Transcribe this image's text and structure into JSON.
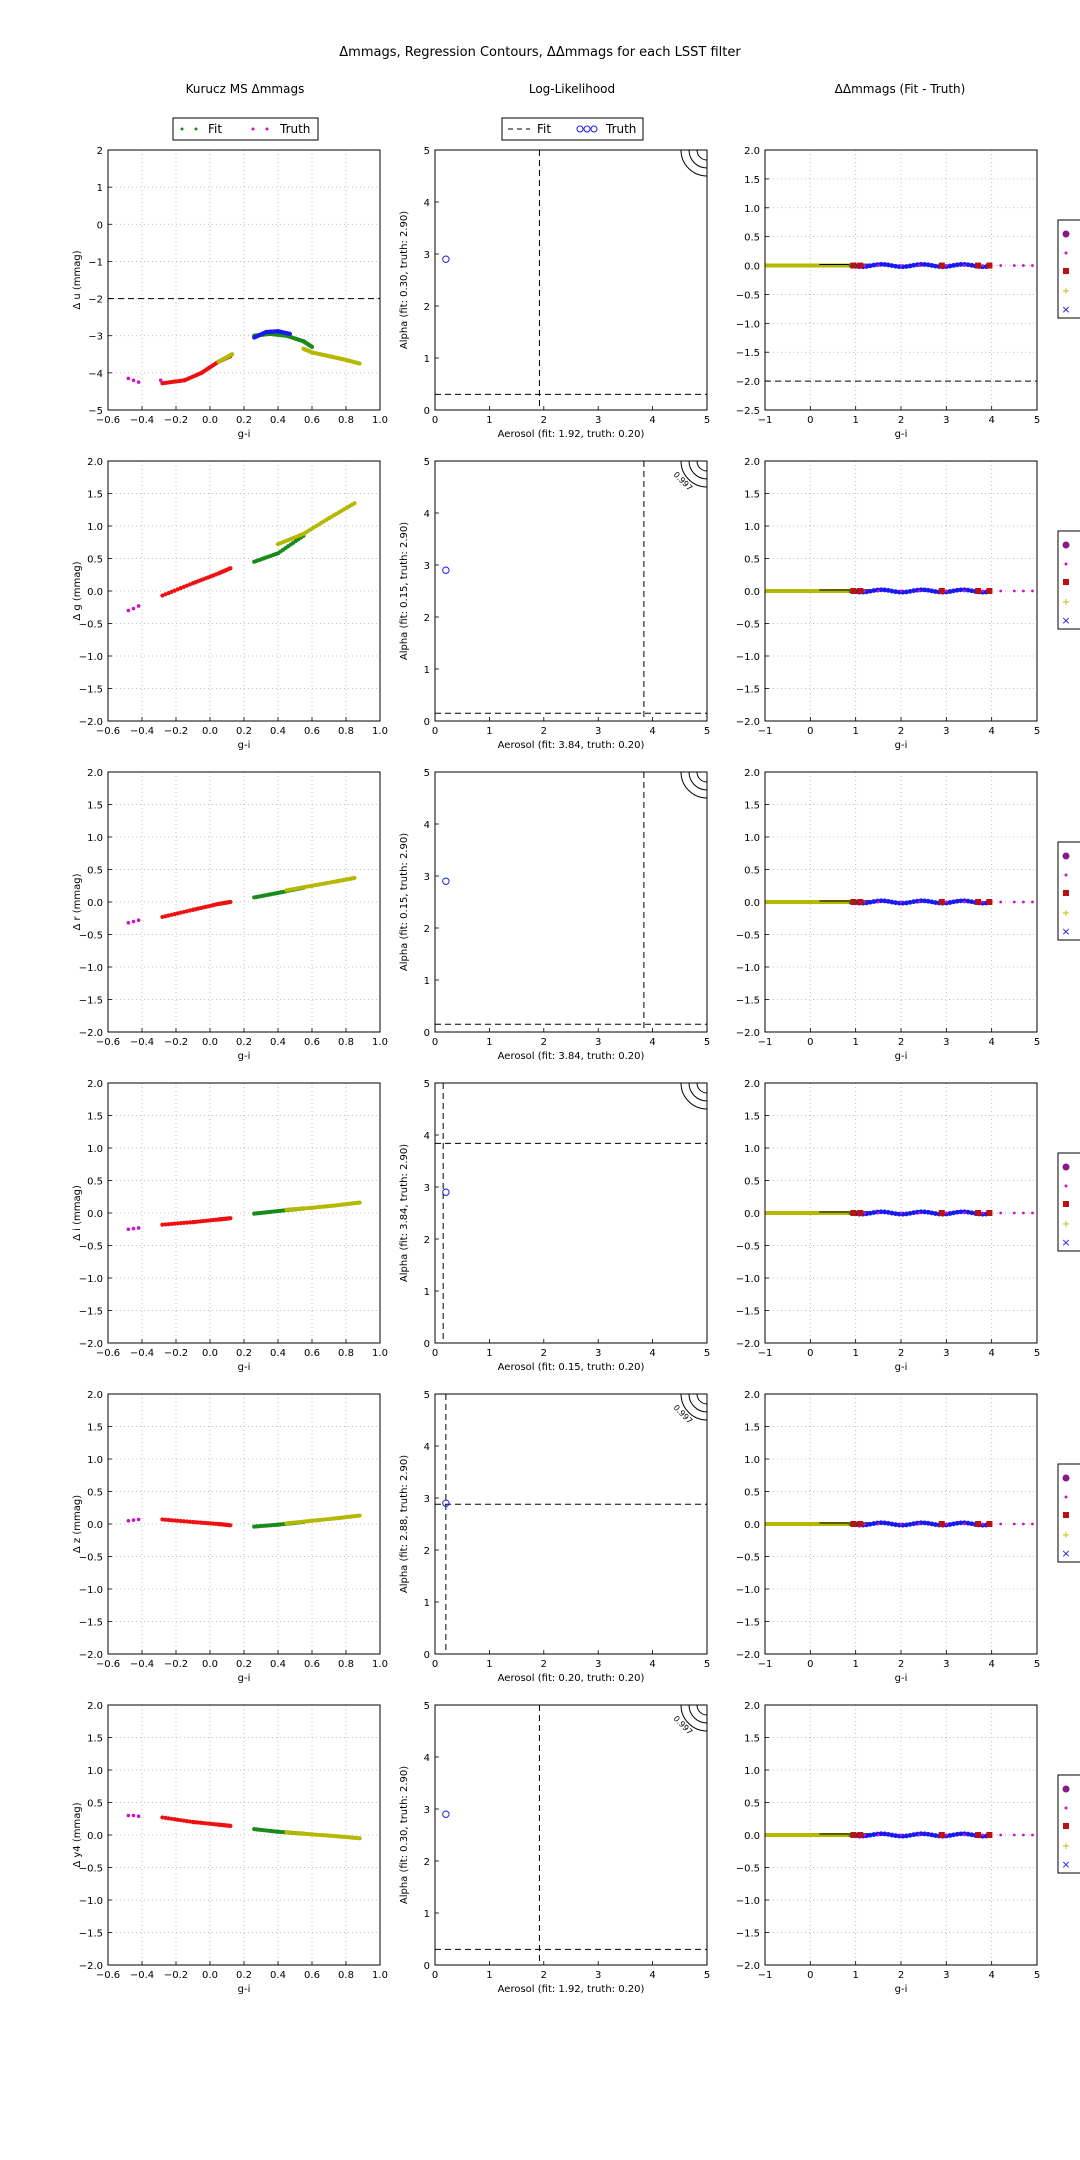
{
  "figure": {
    "title": "Δmmags, Regression Contours, ΔΔmmags for each LSST filter",
    "column_titles": [
      "Kurucz MS Δmmags",
      "Log-Likelihood",
      "ΔΔmmags (Fit - Truth)"
    ]
  },
  "legends": {
    "col1": [
      "Fit",
      "Truth"
    ],
    "col2": [
      "Fit",
      "Truth"
    ]
  },
  "colors": {
    "red": "#ee1111",
    "green": "#1a8a1a",
    "yellow": "#b5b800",
    "blue": "#1a1aee",
    "magenta": "#cc11cc",
    "purple": "#881a88",
    "maroon": "#bb1111",
    "black": "#000000"
  },
  "chart_data": [
    {
      "type": "scatter",
      "column": "dmmags",
      "filter": "u",
      "xlabel": "g-i",
      "ylabel": "Δ u (mmag)",
      "xlim": [
        -0.6,
        1.0
      ],
      "ylim": [
        -5,
        2
      ],
      "xticks": [
        "−0.6",
        "−0.4",
        "−0.2",
        "0.0",
        "0.2",
        "0.4",
        "0.6",
        "0.8",
        "1.0"
      ],
      "yticks": [
        "−5",
        "−4",
        "−3",
        "−2",
        "−1",
        "0",
        "1",
        "2"
      ],
      "grid": true,
      "hline": -2,
      "truth_x": [
        -0.48,
        -0.45,
        -0.42,
        -0.29
      ],
      "truth_y": [
        -4.15,
        -4.2,
        -4.25,
        -4.2
      ],
      "fit_segments": [
        {
          "color": "red",
          "points": [
            [
              -0.28,
              -4.28
            ],
            [
              -0.15,
              -4.2
            ],
            [
              -0.05,
              -4.0
            ],
            [
              0.05,
              -3.7
            ],
            [
              0.12,
              -3.55
            ]
          ]
        },
        {
          "color": "yellow",
          "points": [
            [
              0.05,
              -3.7
            ],
            [
              0.13,
              -3.5
            ]
          ]
        },
        {
          "color": "green",
          "points": [
            [
              0.26,
              -3.0
            ],
            [
              0.35,
              -2.95
            ],
            [
              0.45,
              -3.0
            ],
            [
              0.55,
              -3.15
            ],
            [
              0.6,
              -3.3
            ]
          ]
        },
        {
          "color": "blue",
          "points": [
            [
              0.26,
              -3.05
            ],
            [
              0.33,
              -2.9
            ],
            [
              0.4,
              -2.88
            ],
            [
              0.47,
              -2.95
            ]
          ]
        },
        {
          "color": "yellow",
          "points": [
            [
              0.55,
              -3.35
            ],
            [
              0.6,
              -3.45
            ],
            [
              0.7,
              -3.55
            ],
            [
              0.8,
              -3.65
            ],
            [
              0.88,
              -3.75
            ]
          ]
        }
      ]
    },
    {
      "type": "contour",
      "column": "loglike",
      "filter": "u",
      "xlabel": "Aerosol (fit: 1.92, truth: 0.20)",
      "ylabel": "Alpha (fit: 0.30, truth: 2.90)",
      "xlim": [
        0,
        5
      ],
      "ylim": [
        0,
        5
      ],
      "xticks": [
        "0",
        "1",
        "2",
        "3",
        "4",
        "5"
      ],
      "yticks": [
        "0",
        "1",
        "2",
        "3",
        "4",
        "5"
      ],
      "fit": [
        1.92,
        0.3
      ],
      "truth": [
        0.2,
        2.9
      ],
      "contour_label": ""
    },
    {
      "type": "scatter",
      "column": "ddmmags",
      "filter": "u",
      "xlabel": "g-i",
      "xlim": [
        -1,
        5
      ],
      "ylim": [
        -2.5,
        2.0
      ],
      "xticks": [
        "−1",
        "0",
        "1",
        "2",
        "3",
        "4",
        "5"
      ],
      "yticks": [
        "−2.5",
        "−2.0",
        "−1.5",
        "−1.0",
        "−0.5",
        "0.0",
        "0.5",
        "1.0",
        "1.5",
        "2.0"
      ],
      "grid": true,
      "hline": -2,
      "band_y": 0.0
    },
    {
      "type": "scatter",
      "column": "dmmags",
      "filter": "g",
      "xlabel": "g-i",
      "ylabel": "Δ g (mmag)",
      "xlim": [
        -0.6,
        1.0
      ],
      "ylim": [
        -2,
        2
      ],
      "xticks": [
        "−0.6",
        "−0.4",
        "−0.2",
        "0.0",
        "0.2",
        "0.4",
        "0.6",
        "0.8",
        "1.0"
      ],
      "yticks": [
        "−2.0",
        "−1.5",
        "−1.0",
        "−0.5",
        "0.0",
        "0.5",
        "1.0",
        "1.5",
        "2.0"
      ],
      "grid": true,
      "truth_x": [
        -0.48,
        -0.45,
        -0.42
      ],
      "truth_y": [
        -0.3,
        -0.27,
        -0.23
      ],
      "fit_segments": [
        {
          "color": "red",
          "points": [
            [
              -0.28,
              -0.07
            ],
            [
              -0.1,
              0.12
            ],
            [
              0.05,
              0.27
            ],
            [
              0.12,
              0.35
            ]
          ]
        },
        {
          "color": "green",
          "points": [
            [
              0.26,
              0.45
            ],
            [
              0.4,
              0.58
            ],
            [
              0.55,
              0.85
            ]
          ]
        },
        {
          "color": "yellow",
          "points": [
            [
              0.4,
              0.72
            ],
            [
              0.55,
              0.88
            ],
            [
              0.7,
              1.12
            ],
            [
              0.85,
              1.35
            ]
          ]
        }
      ]
    },
    {
      "type": "contour",
      "column": "loglike",
      "filter": "g",
      "xlabel": "Aerosol (fit: 3.84, truth: 0.20)",
      "ylabel": "Alpha (fit: 0.15, truth: 2.90)",
      "xlim": [
        0,
        5
      ],
      "ylim": [
        0,
        5
      ],
      "xticks": [
        "0",
        "1",
        "2",
        "3",
        "4",
        "5"
      ],
      "yticks": [
        "0",
        "1",
        "2",
        "3",
        "4",
        "5"
      ],
      "fit": [
        3.84,
        0.15
      ],
      "truth": [
        0.2,
        2.9
      ],
      "contour_label": "0.997"
    },
    {
      "type": "scatter",
      "column": "ddmmags",
      "filter": "g",
      "xlabel": "g-i",
      "xlim": [
        -1,
        5
      ],
      "ylim": [
        -2,
        2
      ],
      "xticks": [
        "−1",
        "0",
        "1",
        "2",
        "3",
        "4",
        "5"
      ],
      "yticks": [
        "−2.0",
        "−1.5",
        "−1.0",
        "−0.5",
        "0.0",
        "0.5",
        "1.0",
        "1.5",
        "2.0"
      ],
      "grid": true,
      "band_y": 0.0
    },
    {
      "type": "scatter",
      "column": "dmmags",
      "filter": "r",
      "xlabel": "g-i",
      "ylabel": "Δ r (mmag)",
      "xlim": [
        -0.6,
        1.0
      ],
      "ylim": [
        -2,
        2
      ],
      "xticks": [
        "−0.6",
        "−0.4",
        "−0.2",
        "0.0",
        "0.2",
        "0.4",
        "0.6",
        "0.8",
        "1.0"
      ],
      "yticks": [
        "−2.0",
        "−1.5",
        "−1.0",
        "−0.5",
        "0.0",
        "0.5",
        "1.0",
        "1.5",
        "2.0"
      ],
      "grid": true,
      "truth_x": [
        -0.48,
        -0.45,
        -0.42
      ],
      "truth_y": [
        -0.32,
        -0.3,
        -0.28
      ],
      "fit_segments": [
        {
          "color": "red",
          "points": [
            [
              -0.28,
              -0.23
            ],
            [
              -0.1,
              -0.12
            ],
            [
              0.05,
              -0.03
            ],
            [
              0.12,
              0.0
            ]
          ]
        },
        {
          "color": "green",
          "points": [
            [
              0.26,
              0.07
            ],
            [
              0.4,
              0.14
            ],
            [
              0.55,
              0.22
            ]
          ]
        },
        {
          "color": "yellow",
          "points": [
            [
              0.45,
              0.18
            ],
            [
              0.6,
              0.25
            ],
            [
              0.75,
              0.32
            ],
            [
              0.85,
              0.37
            ]
          ]
        }
      ]
    },
    {
      "type": "contour",
      "column": "loglike",
      "filter": "r",
      "xlabel": "Aerosol (fit: 3.84, truth: 0.20)",
      "ylabel": "Alpha (fit: 0.15, truth: 2.90)",
      "xlim": [
        0,
        5
      ],
      "ylim": [
        0,
        5
      ],
      "xticks": [
        "0",
        "1",
        "2",
        "3",
        "4",
        "5"
      ],
      "yticks": [
        "0",
        "1",
        "2",
        "3",
        "4",
        "5"
      ],
      "fit": [
        3.84,
        0.15
      ],
      "truth": [
        0.2,
        2.9
      ],
      "contour_label": ""
    },
    {
      "type": "scatter",
      "column": "ddmmags",
      "filter": "r",
      "xlabel": "g-i",
      "xlim": [
        -1,
        5
      ],
      "ylim": [
        -2,
        2
      ],
      "xticks": [
        "−1",
        "0",
        "1",
        "2",
        "3",
        "4",
        "5"
      ],
      "yticks": [
        "−2.0",
        "−1.5",
        "−1.0",
        "−0.5",
        "0.0",
        "0.5",
        "1.0",
        "1.5",
        "2.0"
      ],
      "grid": true,
      "band_y": 0.0
    },
    {
      "type": "scatter",
      "column": "dmmags",
      "filter": "i",
      "xlabel": "g-i",
      "ylabel": "Δ i (mmag)",
      "xlim": [
        -0.6,
        1.0
      ],
      "ylim": [
        -2,
        2
      ],
      "xticks": [
        "−0.6",
        "−0.4",
        "−0.2",
        "0.0",
        "0.2",
        "0.4",
        "0.6",
        "0.8",
        "1.0"
      ],
      "yticks": [
        "−2.0",
        "−1.5",
        "−1.0",
        "−0.5",
        "0.0",
        "0.5",
        "1.0",
        "1.5",
        "2.0"
      ],
      "grid": true,
      "truth_x": [
        -0.48,
        -0.45,
        -0.42
      ],
      "truth_y": [
        -0.25,
        -0.24,
        -0.23
      ],
      "fit_segments": [
        {
          "color": "red",
          "points": [
            [
              -0.28,
              -0.18
            ],
            [
              -0.1,
              -0.14
            ],
            [
              0.05,
              -0.1
            ],
            [
              0.12,
              -0.08
            ]
          ]
        },
        {
          "color": "green",
          "points": [
            [
              0.26,
              -0.01
            ],
            [
              0.4,
              0.03
            ],
            [
              0.55,
              0.07
            ]
          ]
        },
        {
          "color": "yellow",
          "points": [
            [
              0.45,
              0.05
            ],
            [
              0.6,
              0.08
            ],
            [
              0.75,
              0.12
            ],
            [
              0.88,
              0.16
            ]
          ]
        }
      ]
    },
    {
      "type": "contour",
      "column": "loglike",
      "filter": "i",
      "xlabel": "Aerosol (fit: 0.15, truth: 0.20)",
      "ylabel": "Alpha (fit: 3.84, truth: 2.90)",
      "xlim": [
        0,
        5
      ],
      "ylim": [
        0,
        5
      ],
      "xticks": [
        "0",
        "1",
        "2",
        "3",
        "4",
        "5"
      ],
      "yticks": [
        "0",
        "1",
        "2",
        "3",
        "4",
        "5"
      ],
      "fit": [
        0.15,
        3.84
      ],
      "truth": [
        0.2,
        2.9
      ],
      "contour_label": ""
    },
    {
      "type": "scatter",
      "column": "ddmmags",
      "filter": "i",
      "xlabel": "g-i",
      "xlim": [
        -1,
        5
      ],
      "ylim": [
        -2,
        2
      ],
      "xticks": [
        "−1",
        "0",
        "1",
        "2",
        "3",
        "4",
        "5"
      ],
      "yticks": [
        "−2.0",
        "−1.5",
        "−1.0",
        "−0.5",
        "0.0",
        "0.5",
        "1.0",
        "1.5",
        "2.0"
      ],
      "grid": true,
      "band_y": 0.0
    },
    {
      "type": "scatter",
      "column": "dmmags",
      "filter": "z",
      "xlabel": "g-i",
      "ylabel": "Δ z (mmag)",
      "xlim": [
        -0.6,
        1.0
      ],
      "ylim": [
        -2,
        2
      ],
      "xticks": [
        "−0.6",
        "−0.4",
        "−0.2",
        "0.0",
        "0.2",
        "0.4",
        "0.6",
        "0.8",
        "1.0"
      ],
      "yticks": [
        "−2.0",
        "−1.5",
        "−1.0",
        "−0.5",
        "0.0",
        "0.5",
        "1.0",
        "1.5",
        "2.0"
      ],
      "grid": true,
      "truth_x": [
        -0.48,
        -0.45,
        -0.42
      ],
      "truth_y": [
        0.05,
        0.06,
        0.07
      ],
      "fit_segments": [
        {
          "color": "red",
          "points": [
            [
              -0.28,
              0.07
            ],
            [
              -0.1,
              0.03
            ],
            [
              0.05,
              0.0
            ],
            [
              0.12,
              -0.02
            ]
          ]
        },
        {
          "color": "green",
          "points": [
            [
              0.26,
              -0.04
            ],
            [
              0.4,
              -0.01
            ],
            [
              0.55,
              0.03
            ]
          ]
        },
        {
          "color": "yellow",
          "points": [
            [
              0.45,
              0.01
            ],
            [
              0.6,
              0.05
            ],
            [
              0.75,
              0.09
            ],
            [
              0.88,
              0.13
            ]
          ]
        }
      ]
    },
    {
      "type": "contour",
      "column": "loglike",
      "filter": "z",
      "xlabel": "Aerosol (fit: 0.20, truth: 0.20)",
      "ylabel": "Alpha (fit: 2.88, truth: 2.90)",
      "xlim": [
        0,
        5
      ],
      "ylim": [
        0,
        5
      ],
      "xticks": [
        "0",
        "1",
        "2",
        "3",
        "4",
        "5"
      ],
      "yticks": [
        "0",
        "1",
        "2",
        "3",
        "4",
        "5"
      ],
      "fit": [
        0.2,
        2.88
      ],
      "truth": [
        0.2,
        2.9
      ],
      "contour_label": "0.997"
    },
    {
      "type": "scatter",
      "column": "ddmmags",
      "filter": "z",
      "xlabel": "g-i",
      "xlim": [
        -1,
        5
      ],
      "ylim": [
        -2,
        2
      ],
      "xticks": [
        "−1",
        "0",
        "1",
        "2",
        "3",
        "4",
        "5"
      ],
      "yticks": [
        "−2.0",
        "−1.5",
        "−1.0",
        "−0.5",
        "0.0",
        "0.5",
        "1.0",
        "1.5",
        "2.0"
      ],
      "grid": true,
      "band_y": 0.0
    },
    {
      "type": "scatter",
      "column": "dmmags",
      "filter": "y4",
      "xlabel": "g-i",
      "ylabel": "Δ y4 (mmag)",
      "xlim": [
        -0.6,
        1.0
      ],
      "ylim": [
        -2,
        2
      ],
      "xticks": [
        "−0.6",
        "−0.4",
        "−0.2",
        "0.0",
        "0.2",
        "0.4",
        "0.6",
        "0.8",
        "1.0"
      ],
      "yticks": [
        "−2.0",
        "−1.5",
        "−1.0",
        "−0.5",
        "0.0",
        "0.5",
        "1.0",
        "1.5",
        "2.0"
      ],
      "grid": true,
      "truth_x": [
        -0.48,
        -0.45,
        -0.42
      ],
      "truth_y": [
        0.3,
        0.3,
        0.29
      ],
      "fit_segments": [
        {
          "color": "red",
          "points": [
            [
              -0.28,
              0.27
            ],
            [
              -0.1,
              0.2
            ],
            [
              0.05,
              0.16
            ],
            [
              0.12,
              0.14
            ]
          ]
        },
        {
          "color": "green",
          "points": [
            [
              0.26,
              0.09
            ],
            [
              0.4,
              0.05
            ],
            [
              0.55,
              0.02
            ]
          ]
        },
        {
          "color": "yellow",
          "points": [
            [
              0.45,
              0.04
            ],
            [
              0.6,
              0.01
            ],
            [
              0.75,
              -0.02
            ],
            [
              0.88,
              -0.05
            ]
          ]
        }
      ]
    },
    {
      "type": "contour",
      "column": "loglike",
      "filter": "y4",
      "xlabel": "Aerosol (fit: 1.92, truth: 0.20)",
      "ylabel": "Alpha (fit: 0.30, truth: 2.90)",
      "xlim": [
        0,
        5
      ],
      "ylim": [
        0,
        5
      ],
      "xticks": [
        "0",
        "1",
        "2",
        "3",
        "4",
        "5"
      ],
      "yticks": [
        "0",
        "1",
        "2",
        "3",
        "4",
        "5"
      ],
      "fit": [
        1.92,
        0.3
      ],
      "truth": [
        0.2,
        2.9
      ],
      "contour_label": "0.997"
    },
    {
      "type": "scatter",
      "column": "ddmmags",
      "filter": "y4",
      "xlabel": "g-i",
      "xlim": [
        -1,
        5
      ],
      "ylim": [
        -2,
        2
      ],
      "xticks": [
        "−1",
        "0",
        "1",
        "2",
        "3",
        "4",
        "5"
      ],
      "yticks": [
        "−2.0",
        "−1.5",
        "−1.0",
        "−0.5",
        "0.0",
        "0.5",
        "1.0",
        "1.5",
        "2.0"
      ],
      "grid": true,
      "band_y": 0.0
    }
  ]
}
